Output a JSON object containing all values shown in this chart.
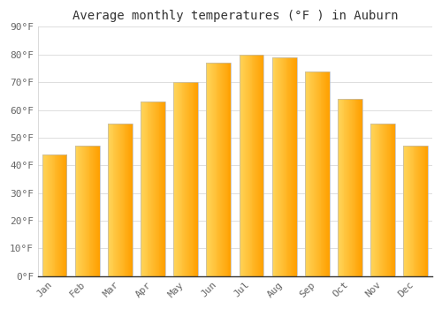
{
  "title": "Average monthly temperatures (°F ) in Auburn",
  "months": [
    "Jan",
    "Feb",
    "Mar",
    "Apr",
    "May",
    "Jun",
    "Jul",
    "Aug",
    "Sep",
    "Oct",
    "Nov",
    "Dec"
  ],
  "values": [
    44,
    47,
    55,
    63,
    70,
    77,
    80,
    79,
    74,
    64,
    55,
    47
  ],
  "bar_color_left": "#FFD55A",
  "bar_color_right": "#FFA000",
  "bar_border_color": "#BBBBBB",
  "background_color": "#FFFFFF",
  "grid_color": "#DDDDDD",
  "ylim": [
    0,
    90
  ],
  "yticks": [
    0,
    10,
    20,
    30,
    40,
    50,
    60,
    70,
    80,
    90
  ],
  "ytick_labels": [
    "0°F",
    "10°F",
    "20°F",
    "30°F",
    "40°F",
    "50°F",
    "60°F",
    "70°F",
    "80°F",
    "90°F"
  ],
  "title_fontsize": 10,
  "tick_fontsize": 8,
  "font_family": "monospace",
  "bar_width": 0.75,
  "n_gradient_strips": 30
}
